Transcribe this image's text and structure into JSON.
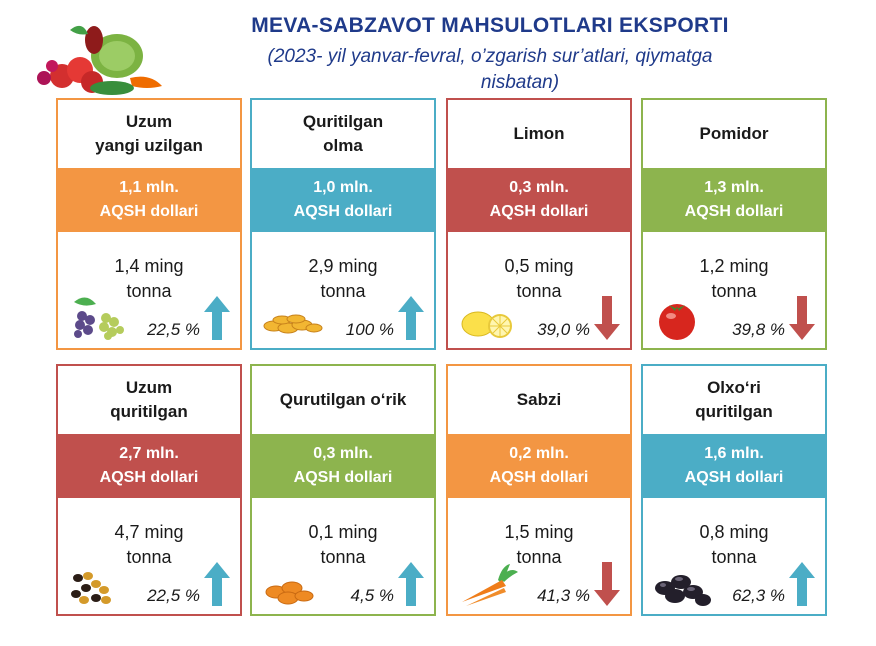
{
  "header": {
    "title": "MEVA-SABZAVOT MAHSULOTLARI EKSPORTI",
    "subtitle_line1": "(2023- yil yanvar-fevral, o’zgarish sur’atlari, qiymatga",
    "subtitle_line2": "nisbatan)"
  },
  "colors": {
    "orange": "#f39643",
    "teal": "#4badc6",
    "red": "#c0504d",
    "green": "#8db44e",
    "arrow_up": "#4badc6",
    "arrow_down": "#c0504d",
    "title": "#1f3a8a"
  },
  "cards": [
    {
      "name_line1": "Uzum",
      "name_line2": "yangi uzilgan",
      "value_line1": "1,1 mln.",
      "value_line2": "AQSH dollari",
      "tonnage_line1": "1,4 ming",
      "tonnage_line2": "tonna",
      "percent": "22,5 %",
      "trend": "up",
      "color": "orange",
      "icon": "grapes-icon"
    },
    {
      "name_line1": "Quritilgan",
      "name_line2": "olma",
      "value_line1": "1,0 mln.",
      "value_line2": "AQSH dollari",
      "tonnage_line1": "2,9 ming",
      "tonnage_line2": "tonna",
      "percent": "100 %",
      "trend": "up",
      "color": "teal",
      "icon": "dried-apple-icon"
    },
    {
      "name_line1": "Limon",
      "name_line2": "",
      "value_line1": "0,3 mln.",
      "value_line2": "AQSH dollari",
      "tonnage_line1": "0,5 ming",
      "tonnage_line2": "tonna",
      "percent": "39,0 %",
      "trend": "down",
      "color": "red",
      "icon": "lemon-icon"
    },
    {
      "name_line1": "Pomidor",
      "name_line2": "",
      "value_line1": "1,3 mln.",
      "value_line2": "AQSH dollari",
      "tonnage_line1": "1,2 ming",
      "tonnage_line2": "tonna",
      "percent": "39,8 %",
      "trend": "down",
      "color": "green",
      "icon": "tomato-icon"
    },
    {
      "name_line1": "Uzum",
      "name_line2": "quritilgan",
      "value_line1": "2,7 mln.",
      "value_line2": "AQSH dollari",
      "tonnage_line1": "4,7 ming",
      "tonnage_line2": "tonna",
      "percent": "22,5 %",
      "trend": "up",
      "color": "red",
      "icon": "raisins-icon"
    },
    {
      "name_line1": "Qurutilgan o‘rik",
      "name_line2": "",
      "value_line1": "0,3 mln.",
      "value_line2": "AQSH dollari",
      "tonnage_line1": "0,1 ming",
      "tonnage_line2": "tonna",
      "percent": "4,5 %",
      "trend": "up",
      "color": "green",
      "icon": "dried-apricot-icon"
    },
    {
      "name_line1": "Sabzi",
      "name_line2": "",
      "value_line1": "0,2 mln.",
      "value_line2": "AQSH dollari",
      "tonnage_line1": "1,5 ming",
      "tonnage_line2": "tonna",
      "percent": "41,3 %",
      "trend": "down",
      "color": "orange",
      "icon": "carrot-icon"
    },
    {
      "name_line1": "Olxo‘ri",
      "name_line2": "quritilgan",
      "value_line1": "1,6 mln.",
      "value_line2": "AQSH dollari",
      "tonnage_line1": "0,8 ming",
      "tonnage_line2": "tonna",
      "percent": "62,3 %",
      "trend": "up",
      "color": "teal",
      "icon": "prunes-icon"
    }
  ]
}
